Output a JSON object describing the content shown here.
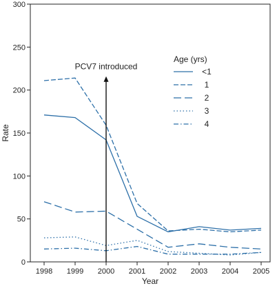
{
  "chart_data": {
    "type": "line",
    "title": "",
    "xlabel": "Year",
    "ylabel": "Rate",
    "x": [
      1998,
      1999,
      2000,
      2001,
      2002,
      2003,
      2004,
      2005
    ],
    "xlim": [
      1998,
      2005
    ],
    "ylim": [
      0,
      300
    ],
    "yticks": [
      0,
      50,
      100,
      150,
      200,
      250,
      300
    ],
    "grid": false,
    "legend": {
      "title": "Age (yrs)",
      "placement": "upper-right"
    },
    "series_color": "#2c6fa8",
    "series": [
      {
        "name": "<1",
        "dash": "solid",
        "values": [
          171,
          168,
          142,
          53,
          35,
          41,
          37,
          39
        ]
      },
      {
        "name": "1",
        "dash": "dash",
        "values": [
          211,
          214,
          159,
          68,
          36,
          38,
          35,
          37
        ]
      },
      {
        "name": "2",
        "dash": "longdash",
        "values": [
          70,
          58,
          59,
          38,
          17,
          21,
          17,
          15
        ]
      },
      {
        "name": "3",
        "dash": "dot",
        "values": [
          28,
          29,
          19,
          25,
          12,
          10,
          8,
          11
        ]
      },
      {
        "name": "4",
        "dash": "dashdot",
        "values": [
          15,
          16,
          13,
          18,
          9,
          9,
          9,
          11
        ]
      }
    ],
    "annotations": [
      {
        "label": "PCV7 introduced",
        "x": 2000,
        "y_from": 0,
        "y_to": 216
      }
    ]
  }
}
